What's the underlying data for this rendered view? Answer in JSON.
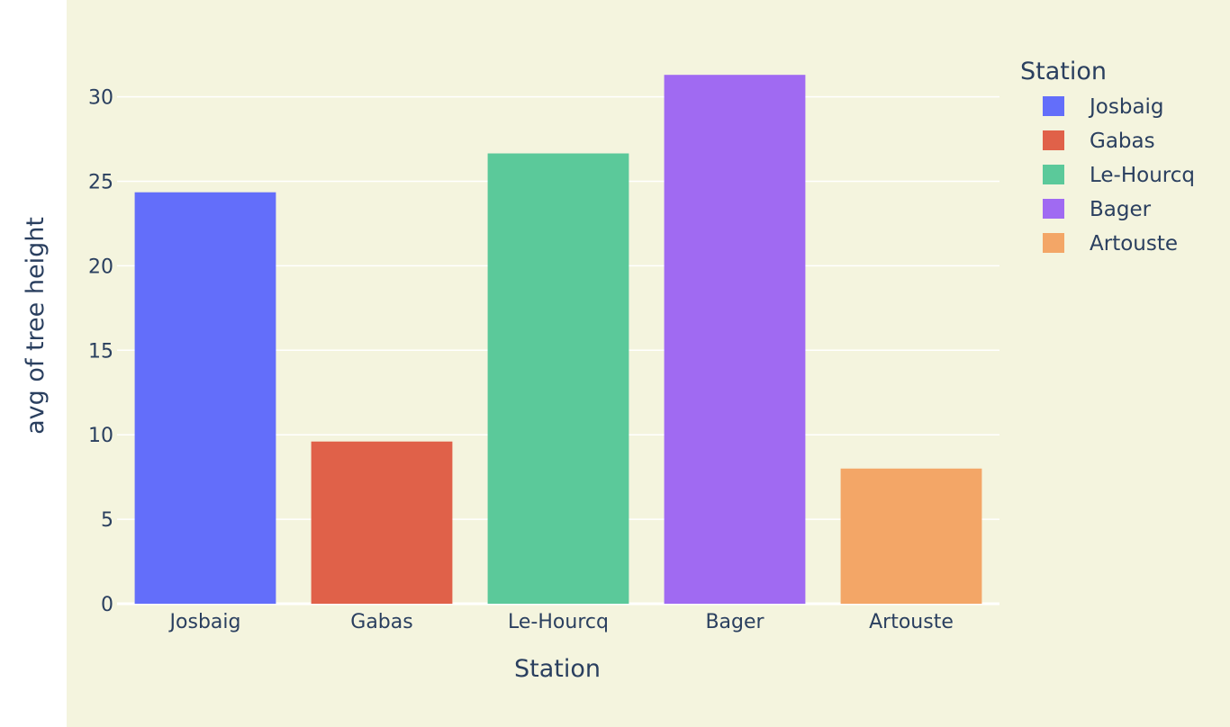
{
  "chart_data": {
    "type": "bar",
    "categories": [
      "Josbaig",
      "Gabas",
      "Le-Hourcq",
      "Bager",
      "Artouste"
    ],
    "series": [
      {
        "name": "Josbaig",
        "category": "Josbaig",
        "value": 24.35,
        "color": "#636efa"
      },
      {
        "name": "Gabas",
        "category": "Gabas",
        "value": 9.6,
        "color": "#e06149"
      },
      {
        "name": "Le-Hourcq",
        "category": "Le-Hourcq",
        "value": 26.65,
        "color": "#5bc99a"
      },
      {
        "name": "Bager",
        "category": "Bager",
        "value": 31.3,
        "color": "#a06af2"
      },
      {
        "name": "Artouste",
        "category": "Artouste",
        "value": 8.0,
        "color": "#f3a667"
      }
    ],
    "xlabel": "Station",
    "ylabel": "avg of tree height",
    "ylim": [
      0,
      32.9
    ],
    "yticks": [
      0,
      5,
      10,
      15,
      20,
      25,
      30
    ],
    "grid": true,
    "legend": {
      "title": "Station",
      "placement": "right"
    },
    "colors": {
      "background": "#f4f4de",
      "gridline": "#ffffff",
      "text": "#2a3f5f"
    }
  }
}
